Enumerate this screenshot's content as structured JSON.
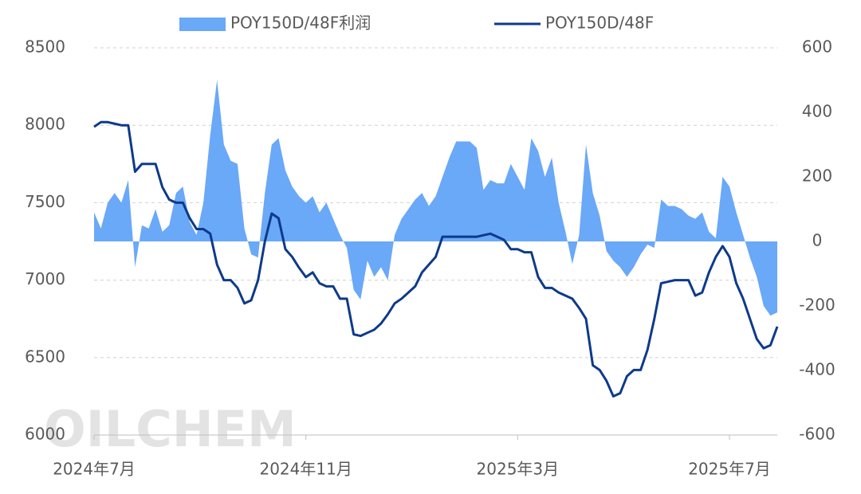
{
  "chart_data": {
    "type": "line",
    "watermark": "OILCHEM",
    "categories": [
      "2024年7月",
      null,
      null,
      null,
      null,
      null,
      null,
      null,
      null,
      null,
      null,
      null,
      null,
      null,
      null,
      null,
      null,
      null,
      null,
      null,
      null,
      null,
      null,
      null,
      null,
      null,
      null,
      null,
      null,
      null,
      null,
      "2024年11月",
      null,
      null,
      null,
      null,
      null,
      null,
      null,
      null,
      null,
      null,
      null,
      null,
      null,
      null,
      null,
      null,
      null,
      null,
      null,
      null,
      null,
      null,
      null,
      null,
      null,
      null,
      null,
      null,
      null,
      null,
      "2025年3月",
      null,
      null,
      null,
      null,
      null,
      null,
      null,
      null,
      null,
      null,
      null,
      null,
      null,
      null,
      null,
      null,
      null,
      null,
      null,
      null,
      null,
      null,
      null,
      null,
      null,
      null,
      null,
      null,
      null,
      null,
      "2025年7月",
      null,
      null,
      null,
      null,
      null,
      null,
      null
    ],
    "series": [
      {
        "name": "POY150D/48F利润",
        "type": "area",
        "axis": "y2",
        "color": "#6aa8f8",
        "values": [
          90,
          40,
          120,
          150,
          120,
          190,
          -80,
          50,
          40,
          100,
          30,
          50,
          150,
          170,
          60,
          20,
          120,
          330,
          500,
          300,
          250,
          240,
          40,
          -40,
          -50,
          150,
          300,
          320,
          220,
          170,
          140,
          120,
          140,
          90,
          120,
          70,
          20,
          -20,
          -150,
          -180,
          -60,
          -110,
          -80,
          -120,
          20,
          70,
          100,
          130,
          150,
          110,
          140,
          200,
          260,
          310,
          310,
          310,
          290,
          160,
          190,
          180,
          180,
          240,
          200,
          160,
          320,
          280,
          200,
          260,
          120,
          30,
          -70,
          20,
          300,
          150,
          80,
          -30,
          -60,
          -80,
          -110,
          -80,
          -40,
          -10,
          -20,
          130,
          110,
          110,
          100,
          80,
          70,
          90,
          30,
          10,
          200,
          170,
          90,
          20,
          -50,
          -110,
          -200,
          -230,
          -220
        ]
      },
      {
        "name": "POY150D/48F",
        "type": "line",
        "color": "#0d3a8a",
        "values": [
          7990,
          8020,
          8020,
          8010,
          8000,
          8000,
          7700,
          7750,
          7750,
          7750,
          7600,
          7520,
          7500,
          7500,
          7400,
          7330,
          7330,
          7300,
          7100,
          7000,
          7000,
          6950,
          6850,
          6870,
          7000,
          7250,
          7430,
          7400,
          7200,
          7150,
          7080,
          7020,
          7050,
          6980,
          6960,
          6960,
          6880,
          6880,
          6650,
          6640,
          6660,
          6680,
          6720,
          6780,
          6850,
          6880,
          6920,
          6960,
          7050,
          7100,
          7150,
          7280,
          7280,
          7280,
          7280,
          7280,
          7280,
          7290,
          7300,
          7280,
          7260,
          7200,
          7200,
          7180,
          7180,
          7020,
          6950,
          6950,
          6920,
          6900,
          6880,
          6820,
          6750,
          6450,
          6420,
          6350,
          6250,
          6270,
          6380,
          6420,
          6420,
          6550,
          6750,
          6980,
          6990,
          7000,
          7000,
          7000,
          6900,
          6920,
          7050,
          7150,
          7220,
          7150,
          6980,
          6880,
          6750,
          6620,
          6560,
          6580,
          6700
        ]
      }
    ],
    "ylim": [
      6000,
      8500
    ],
    "yticks": [
      6000,
      6500,
      7000,
      7500,
      8000,
      8500
    ],
    "y2lim": [
      -600,
      600
    ],
    "y2ticks": [
      -600,
      -400,
      -200,
      0,
      200,
      400,
      600
    ],
    "grid": true,
    "legend": "top"
  }
}
